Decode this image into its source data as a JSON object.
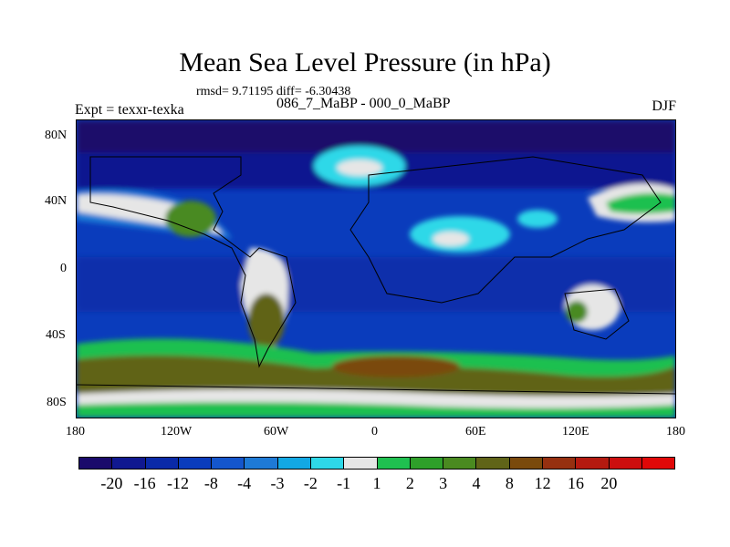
{
  "title": "Mean Sea Level Pressure (in hPa)",
  "stats": "rmsd= 9.71195 diff= -6.30438",
  "experiment_pair": "086_7_MaBP - 000_0_MaBP",
  "expt_label": "Expt = texxr-texka",
  "season": "DJF",
  "y_axis": [
    "80N",
    "40N",
    "0",
    "40S",
    "80S"
  ],
  "x_axis": [
    "180",
    "120W",
    "60W",
    "0",
    "60E",
    "120E",
    "180"
  ],
  "colorbar": {
    "colors": [
      "#1a0a6b",
      "#101890",
      "#0a2aa8",
      "#0a3cbc",
      "#1456cc",
      "#1e7ad6",
      "#12a8e4",
      "#2ed8e8",
      "#e6e6e6",
      "#1fc050",
      "#2ea02a",
      "#4a8a20",
      "#606418",
      "#7a4a0c",
      "#963010",
      "#b41a10",
      "#cc0e0e",
      "#e00808"
    ],
    "labels": [
      "-20",
      "-16",
      "-12",
      "-8",
      "-4",
      "-3",
      "-2",
      "-1",
      "1",
      "2",
      "3",
      "4",
      "8",
      "12",
      "16",
      "20"
    ]
  }
}
